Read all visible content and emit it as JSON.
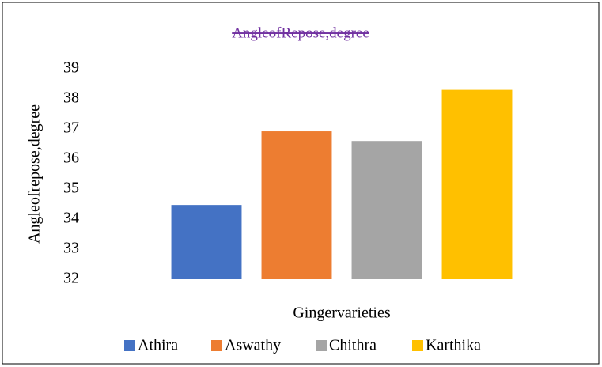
{
  "chart_data": {
    "type": "bar",
    "title": "AngleofRepose,degree",
    "x_label": "Gingervarieties",
    "y_label": "Angleofrepose,degree",
    "categories": [
      "Athira",
      "Aswathy",
      "Chithra",
      "Karthika"
    ],
    "values": [
      34.47,
      36.92,
      36.6,
      38.3
    ],
    "colors": [
      "#4472c4",
      "#ed7d31",
      "#a5a5a5",
      "#ffc000"
    ],
    "ylim": [
      32,
      39
    ],
    "yticks": [
      32,
      33,
      34,
      35,
      36,
      37,
      38,
      39
    ],
    "grid": false
  }
}
